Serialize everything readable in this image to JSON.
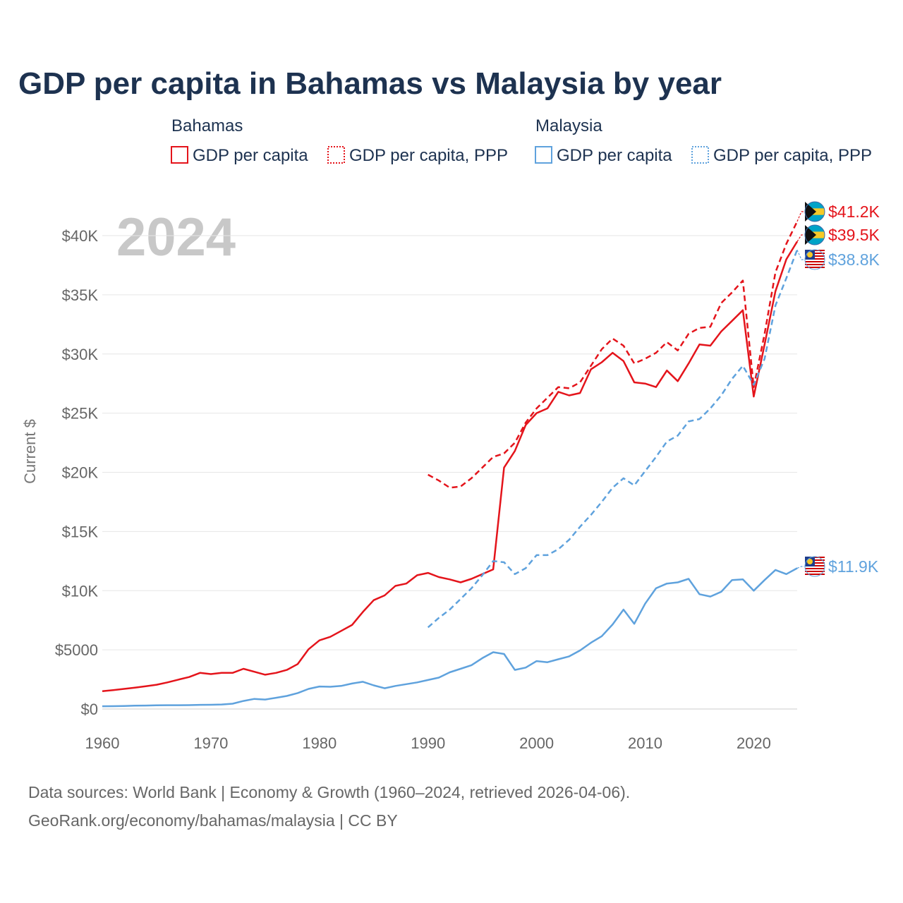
{
  "title": "GDP per capita in Bahamas vs Malaysia by year",
  "year_watermark": "2024",
  "legend": {
    "groups": [
      {
        "country": "Bahamas",
        "color": "#e4141b",
        "items": [
          {
            "label": "GDP per capita",
            "style": "solid"
          },
          {
            "label": "GDP per capita, PPP",
            "style": "dotted"
          }
        ]
      },
      {
        "country": "Malaysia",
        "color": "#5fa2dd",
        "items": [
          {
            "label": "GDP per capita",
            "style": "solid"
          },
          {
            "label": "GDP per capita, PPP",
            "style": "dotted"
          }
        ]
      }
    ]
  },
  "footer": {
    "line1": "Data sources: World Bank | Economy & Growth (1960–2024, retrieved 2026-04-06).",
    "line2": "GeoRank.org/economy/bahamas/malaysia | CC BY"
  },
  "chart_data": {
    "type": "line",
    "title": "GDP per capita in Bahamas vs Malaysia by year",
    "xlabel": "",
    "ylabel": "Current $",
    "xlim": [
      1960,
      2024
    ],
    "ylim": [
      0,
      42500
    ],
    "grid": true,
    "x_ticks": [
      1960,
      1970,
      1980,
      1990,
      2000,
      2010,
      2020
    ],
    "x_tick_labels": [
      "1960",
      "1970",
      "1980",
      "1990",
      "2000",
      "2010",
      "2020"
    ],
    "y_ticks": [
      0,
      5000,
      10000,
      15000,
      20000,
      25000,
      30000,
      35000,
      40000
    ],
    "y_tick_labels": [
      "$0",
      "$5000",
      "$10K",
      "$15K",
      "$20K",
      "$25K",
      "$30K",
      "$35K",
      "$40K"
    ],
    "series": [
      {
        "name": "Bahamas GDP per capita",
        "country": "Bahamas",
        "color": "#e4141b",
        "dash": "solid",
        "end_label": "$39.5K",
        "x": [
          1960,
          1961,
          1962,
          1963,
          1964,
          1965,
          1966,
          1967,
          1968,
          1969,
          1970,
          1971,
          1972,
          1973,
          1974,
          1975,
          1976,
          1977,
          1978,
          1979,
          1980,
          1981,
          1982,
          1983,
          1984,
          1985,
          1986,
          1987,
          1988,
          1989,
          1990,
          1991,
          1992,
          1993,
          1994,
          1995,
          1996,
          1997,
          1998,
          1999,
          2000,
          2001,
          2002,
          2003,
          2004,
          2005,
          2006,
          2007,
          2008,
          2009,
          2010,
          2011,
          2012,
          2013,
          2014,
          2015,
          2016,
          2017,
          2018,
          2019,
          2020,
          2021,
          2022,
          2023,
          2024
        ],
        "values": [
          1500,
          1600,
          1700,
          1800,
          1920,
          2050,
          2250,
          2480,
          2700,
          3050,
          2950,
          3050,
          3050,
          3400,
          3150,
          2900,
          3050,
          3300,
          3800,
          5050,
          5800,
          6100,
          6600,
          7100,
          8200,
          9200,
          9600,
          10400,
          10600,
          11300,
          11500,
          11150,
          10950,
          10700,
          11000,
          11400,
          11800,
          20400,
          21800,
          24000,
          25000,
          25400,
          26800,
          26500,
          26700,
          28700,
          29300,
          30100,
          29400,
          27600,
          27500,
          27200,
          28600,
          27700,
          29200,
          30800,
          30700,
          31900,
          32800,
          33700,
          26400,
          30800,
          35300,
          38000,
          39500
        ]
      },
      {
        "name": "Bahamas GDP per capita, PPP",
        "country": "Bahamas",
        "color": "#e4141b",
        "dash": "dashed",
        "end_label": "$41.2K",
        "x": [
          1990,
          1991,
          1992,
          1993,
          1994,
          1995,
          1996,
          1997,
          1998,
          1999,
          2000,
          2001,
          2002,
          2003,
          2004,
          2005,
          2006,
          2007,
          2008,
          2009,
          2010,
          2011,
          2012,
          2013,
          2014,
          2015,
          2016,
          2017,
          2018,
          2019,
          2020,
          2021,
          2022,
          2023,
          2024
        ],
        "values": [
          19800,
          19300,
          18700,
          18800,
          19500,
          20400,
          21300,
          21600,
          22500,
          24200,
          25400,
          26300,
          27200,
          27100,
          27600,
          29000,
          30400,
          31300,
          30700,
          29200,
          29600,
          30100,
          31000,
          30300,
          31700,
          32200,
          32300,
          34300,
          35200,
          36200,
          27200,
          31700,
          36900,
          39300,
          41200
        ]
      },
      {
        "name": "Malaysia GDP per capita",
        "country": "Malaysia",
        "color": "#5fa2dd",
        "dash": "solid",
        "end_label": "$11.9K",
        "x": [
          1960,
          1961,
          1962,
          1963,
          1964,
          1965,
          1966,
          1967,
          1968,
          1969,
          1970,
          1971,
          1972,
          1973,
          1974,
          1975,
          1976,
          1977,
          1978,
          1979,
          1980,
          1981,
          1982,
          1983,
          1984,
          1985,
          1986,
          1987,
          1988,
          1989,
          1990,
          1991,
          1992,
          1993,
          1994,
          1995,
          1996,
          1997,
          1998,
          1999,
          2000,
          2001,
          2002,
          2003,
          2004,
          2005,
          2006,
          2007,
          2008,
          2009,
          2010,
          2011,
          2012,
          2013,
          2014,
          2015,
          2016,
          2017,
          2018,
          2019,
          2020,
          2021,
          2022,
          2023,
          2024
        ],
        "values": [
          235,
          240,
          250,
          280,
          290,
          310,
          320,
          320,
          330,
          350,
          360,
          380,
          450,
          680,
          850,
          800,
          950,
          1100,
          1350,
          1700,
          1900,
          1880,
          1950,
          2150,
          2300,
          2000,
          1750,
          1950,
          2100,
          2250,
          2450,
          2650,
          3100,
          3400,
          3700,
          4300,
          4800,
          4650,
          3300,
          3500,
          4050,
          3950,
          4200,
          4450,
          4950,
          5600,
          6150,
          7150,
          8400,
          7200,
          8900,
          10200,
          10600,
          10700,
          11000,
          9700,
          9500,
          9900,
          10900,
          10950,
          10000,
          10900,
          11750,
          11400,
          11900
        ]
      },
      {
        "name": "Malaysia GDP per capita, PPP",
        "country": "Malaysia",
        "color": "#5fa2dd",
        "dash": "dashed",
        "end_label": "$38.8K",
        "x": [
          1990,
          1991,
          1992,
          1993,
          1994,
          1995,
          1996,
          1997,
          1998,
          1999,
          2000,
          2001,
          2002,
          2003,
          2004,
          2005,
          2006,
          2007,
          2008,
          2009,
          2010,
          2011,
          2012,
          2013,
          2014,
          2015,
          2016,
          2017,
          2018,
          2019,
          2020,
          2021,
          2022,
          2023,
          2024
        ],
        "values": [
          6900,
          7700,
          8400,
          9300,
          10200,
          11300,
          12500,
          12400,
          11400,
          11900,
          13000,
          13000,
          13500,
          14300,
          15400,
          16400,
          17500,
          18700,
          19500,
          18900,
          20100,
          21300,
          22600,
          23100,
          24300,
          24500,
          25400,
          26500,
          27900,
          29000,
          27400,
          29600,
          34100,
          36400,
          38800
        ]
      }
    ]
  }
}
